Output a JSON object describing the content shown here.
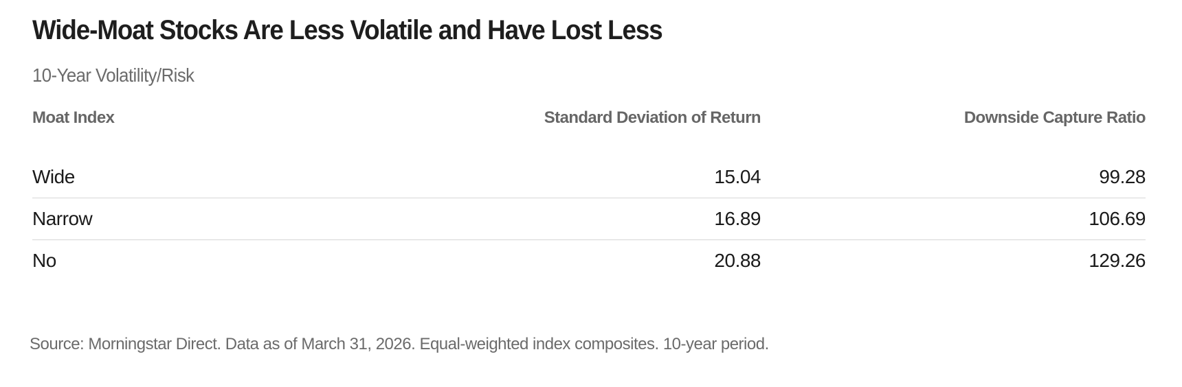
{
  "chart_data": {
    "type": "table",
    "title": "Wide-Moat Stocks Are Less Volatile and Have Lost Less",
    "subtitle": "10-Year Volatility/Risk",
    "columns": [
      "Moat Index",
      "Standard Deviation of Return",
      "Downside Capture Ratio"
    ],
    "rows": [
      {
        "label": "Wide",
        "std_dev": "15.04",
        "downside_capture": "99.28"
      },
      {
        "label": "Narrow",
        "std_dev": "16.89",
        "downside_capture": "106.69"
      },
      {
        "label": "No",
        "std_dev": "20.88",
        "downside_capture": "129.26"
      }
    ],
    "source": "Source: Morningstar Direct. Data as of March 31, 2026. Equal-weighted index composites. 10-year period."
  }
}
